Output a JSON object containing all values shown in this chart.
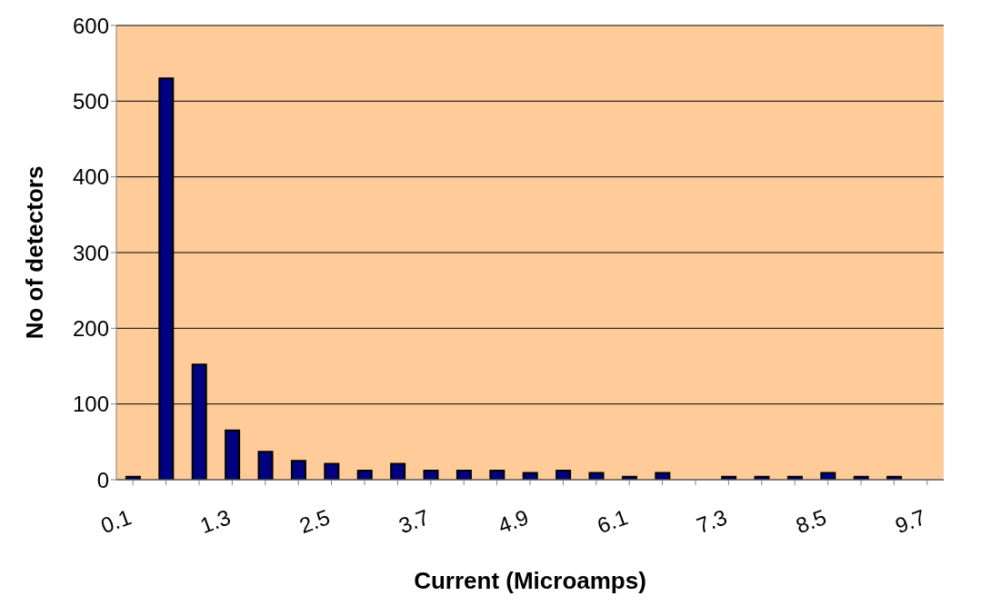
{
  "chart_data": {
    "type": "bar",
    "xlabel": "Current  (Microamps)",
    "ylabel": "No of detectors",
    "categories": [
      "0.1",
      null,
      null,
      "1.3",
      null,
      null,
      "2.5",
      null,
      null,
      "3.7",
      null,
      null,
      "4.9",
      null,
      null,
      "6.1",
      null,
      null,
      "7.3",
      null,
      null,
      "8.5",
      null,
      null,
      "9.7"
    ],
    "values": [
      4,
      530,
      152,
      65,
      37,
      25,
      21,
      12,
      21,
      12,
      12,
      12,
      9,
      12,
      9,
      4,
      9,
      0,
      4,
      4,
      4,
      9,
      4,
      4,
      null
    ],
    "color": "#000080",
    "ylim": [
      0,
      600
    ],
    "yticks": [
      0,
      100,
      200,
      300,
      400,
      500,
      600
    ],
    "grid": "y"
  }
}
